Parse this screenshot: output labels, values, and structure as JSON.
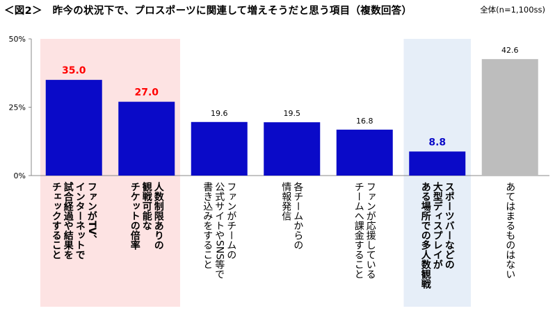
{
  "title": "＜図2＞　昨今の状況下で、プロスポーツに関連して増えそうだと思う項目（複数回答）",
  "base_note": "全体(n=1,100ss)",
  "chart_data": {
    "type": "bar",
    "title": "＜図2＞　昨今の状況下で、プロスポーツに関連して増えそうだと思う項目（複数回答）",
    "ylim": [
      0,
      50
    ],
    "yticks": [
      "0%",
      "25%",
      "50%"
    ],
    "ytick_values": [
      0,
      25,
      50
    ],
    "grid": false,
    "categories": [
      "ファンがTVやインターネットで試合経過や結果をチェックすること",
      "人数制限ありの観戦可能なチケットの倍率",
      "ファンがチームの公式サイトやSNS等で書き込みをすること",
      "各チームからの情報発信",
      "ファンが応援しているチームへ課金すること",
      "スポーツバーなどの大型ディスプレイがある場所での多人数観戦",
      "あてはまるものはない"
    ],
    "category_lines": [
      [
        "ファンがTV、",
        "インターネットで",
        "試合経過や結果を",
        "チェックすること"
      ],
      [
        "人数制限ありの",
        "観戦可能な",
        "チケットの倍率"
      ],
      [
        "ファンがチームの",
        "公式サイトやSNS等で",
        "書き込みをすること"
      ],
      [
        "各チームからの",
        "情報発信"
      ],
      [
        "ファンが応援している",
        "チームへ課金すること"
      ],
      [
        "スポーツバーなどの",
        "大型ディスプレイが",
        "ある場所での多人数観戦"
      ],
      [
        "あてはまるものはない"
      ]
    ],
    "values": [
      35.0,
      27.0,
      19.6,
      19.5,
      16.8,
      8.8,
      42.6
    ],
    "value_labels": [
      "35.0",
      "27.0",
      "19.6",
      "19.5",
      "16.8",
      "8.8",
      "42.6"
    ],
    "bar_colors": [
      "#0a0ac8",
      "#0a0ac8",
      "#0a0ac8",
      "#0a0ac8",
      "#0a0ac8",
      "#0a0ac8",
      "#bdbdbd"
    ],
    "label_colors": [
      "#ff0000",
      "#ff0000",
      "#000000",
      "#000000",
      "#000000",
      "#0a0ac8",
      "#000000"
    ],
    "label_bold": [
      true,
      true,
      false,
      false,
      false,
      true,
      false
    ],
    "category_bold": [
      true,
      true,
      false,
      false,
      false,
      true,
      false
    ],
    "highlight_groups": [
      {
        "indices": [
          0,
          1
        ],
        "color": "#fde3e3"
      },
      {
        "indices": [
          5
        ],
        "color": "#e6eef8"
      }
    ]
  }
}
